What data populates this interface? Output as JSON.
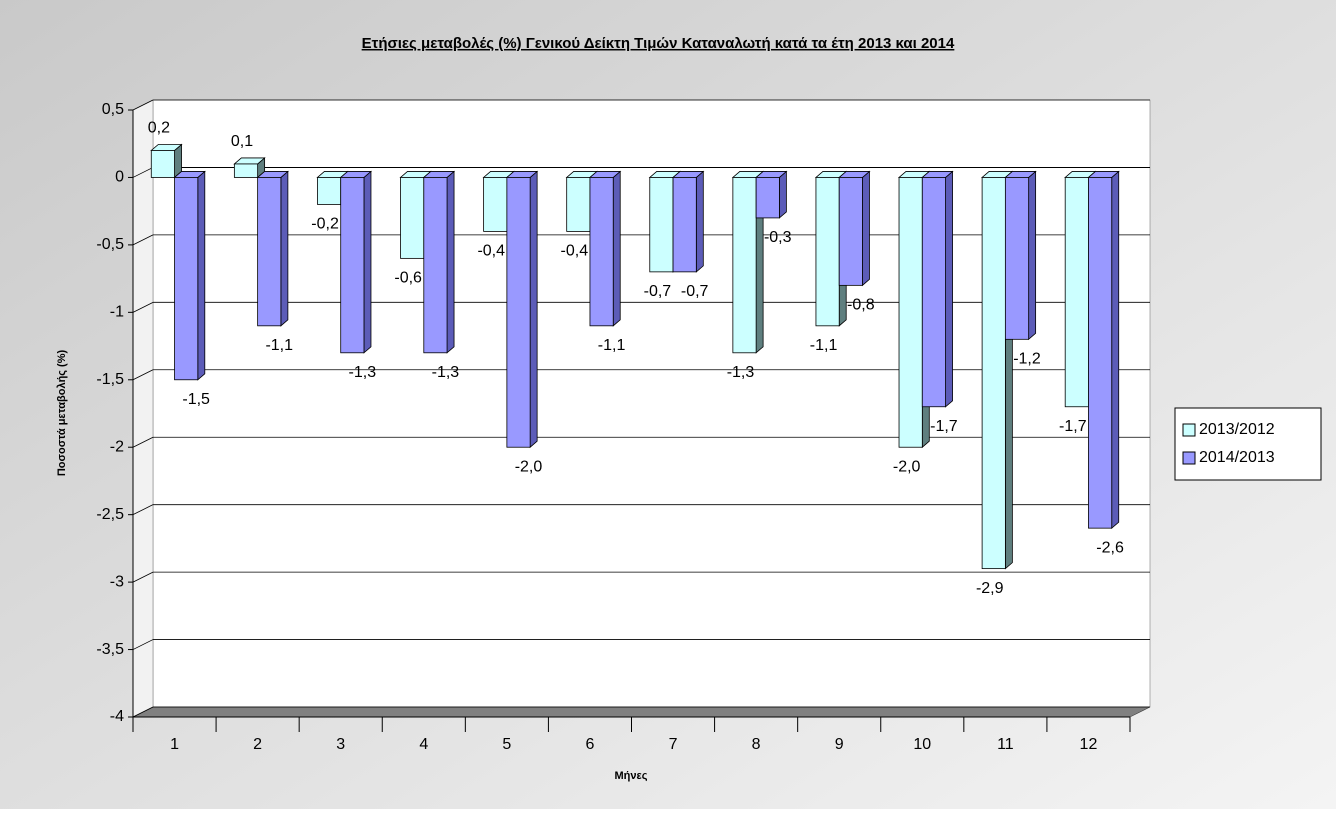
{
  "chart_data": {
    "type": "bar",
    "title": "Ετήσιες μεταβολές (%) Γενικού Δείκτη Τιμών Καταναλωτή κατά τα έτη 2013 και 2014",
    "x_label": "Μήνες",
    "y_label": "Ποσοστά μεταβολής (%)",
    "categories": [
      "1",
      "2",
      "3",
      "4",
      "5",
      "6",
      "7",
      "8",
      "9",
      "10",
      "11",
      "12"
    ],
    "series": [
      {
        "name": "2013/2012",
        "color": "#ccffff",
        "side_color": "#5f7f7f",
        "values": [
          0.2,
          0.1,
          -0.2,
          -0.6,
          -0.4,
          -0.4,
          -0.7,
          -1.3,
          -1.1,
          -2.0,
          -2.9,
          -1.7
        ],
        "value_labels": [
          "0,2",
          "0,1",
          "-0,2",
          "-0,6",
          "-0,4",
          "-0,4",
          "-0,7",
          "-1,3",
          "-1,1",
          "-2,0",
          "-2,9",
          "-1,7"
        ]
      },
      {
        "name": "2014/2013",
        "color": "#9999ff",
        "side_color": "#5c5cb8",
        "values": [
          -1.5,
          -1.1,
          -1.3,
          -1.3,
          -2.0,
          -1.1,
          -0.7,
          -0.3,
          -0.8,
          -1.7,
          -1.2,
          -2.6
        ],
        "value_labels": [
          "-1,5",
          "-1,1",
          "-1,3",
          "-1,3",
          "-2,0",
          "-1,1",
          "-0,7",
          "-0,3",
          "-0,8",
          "-1,7",
          "-1,2",
          "-2,6"
        ]
      }
    ],
    "ylim": [
      -4,
      0.5
    ],
    "yticks": [
      {
        "value": 0.5,
        "label": "0,5"
      },
      0,
      {
        "value": -0.5,
        "label": "-0,5"
      },
      -1,
      {
        "value": -1.5,
        "label": "-1,5"
      },
      -2,
      {
        "value": -2.5,
        "label": "-2,5"
      },
      -3,
      {
        "value": -3.5,
        "label": "-3,5"
      },
      -4
    ],
    "grid": true,
    "legend": "right"
  }
}
